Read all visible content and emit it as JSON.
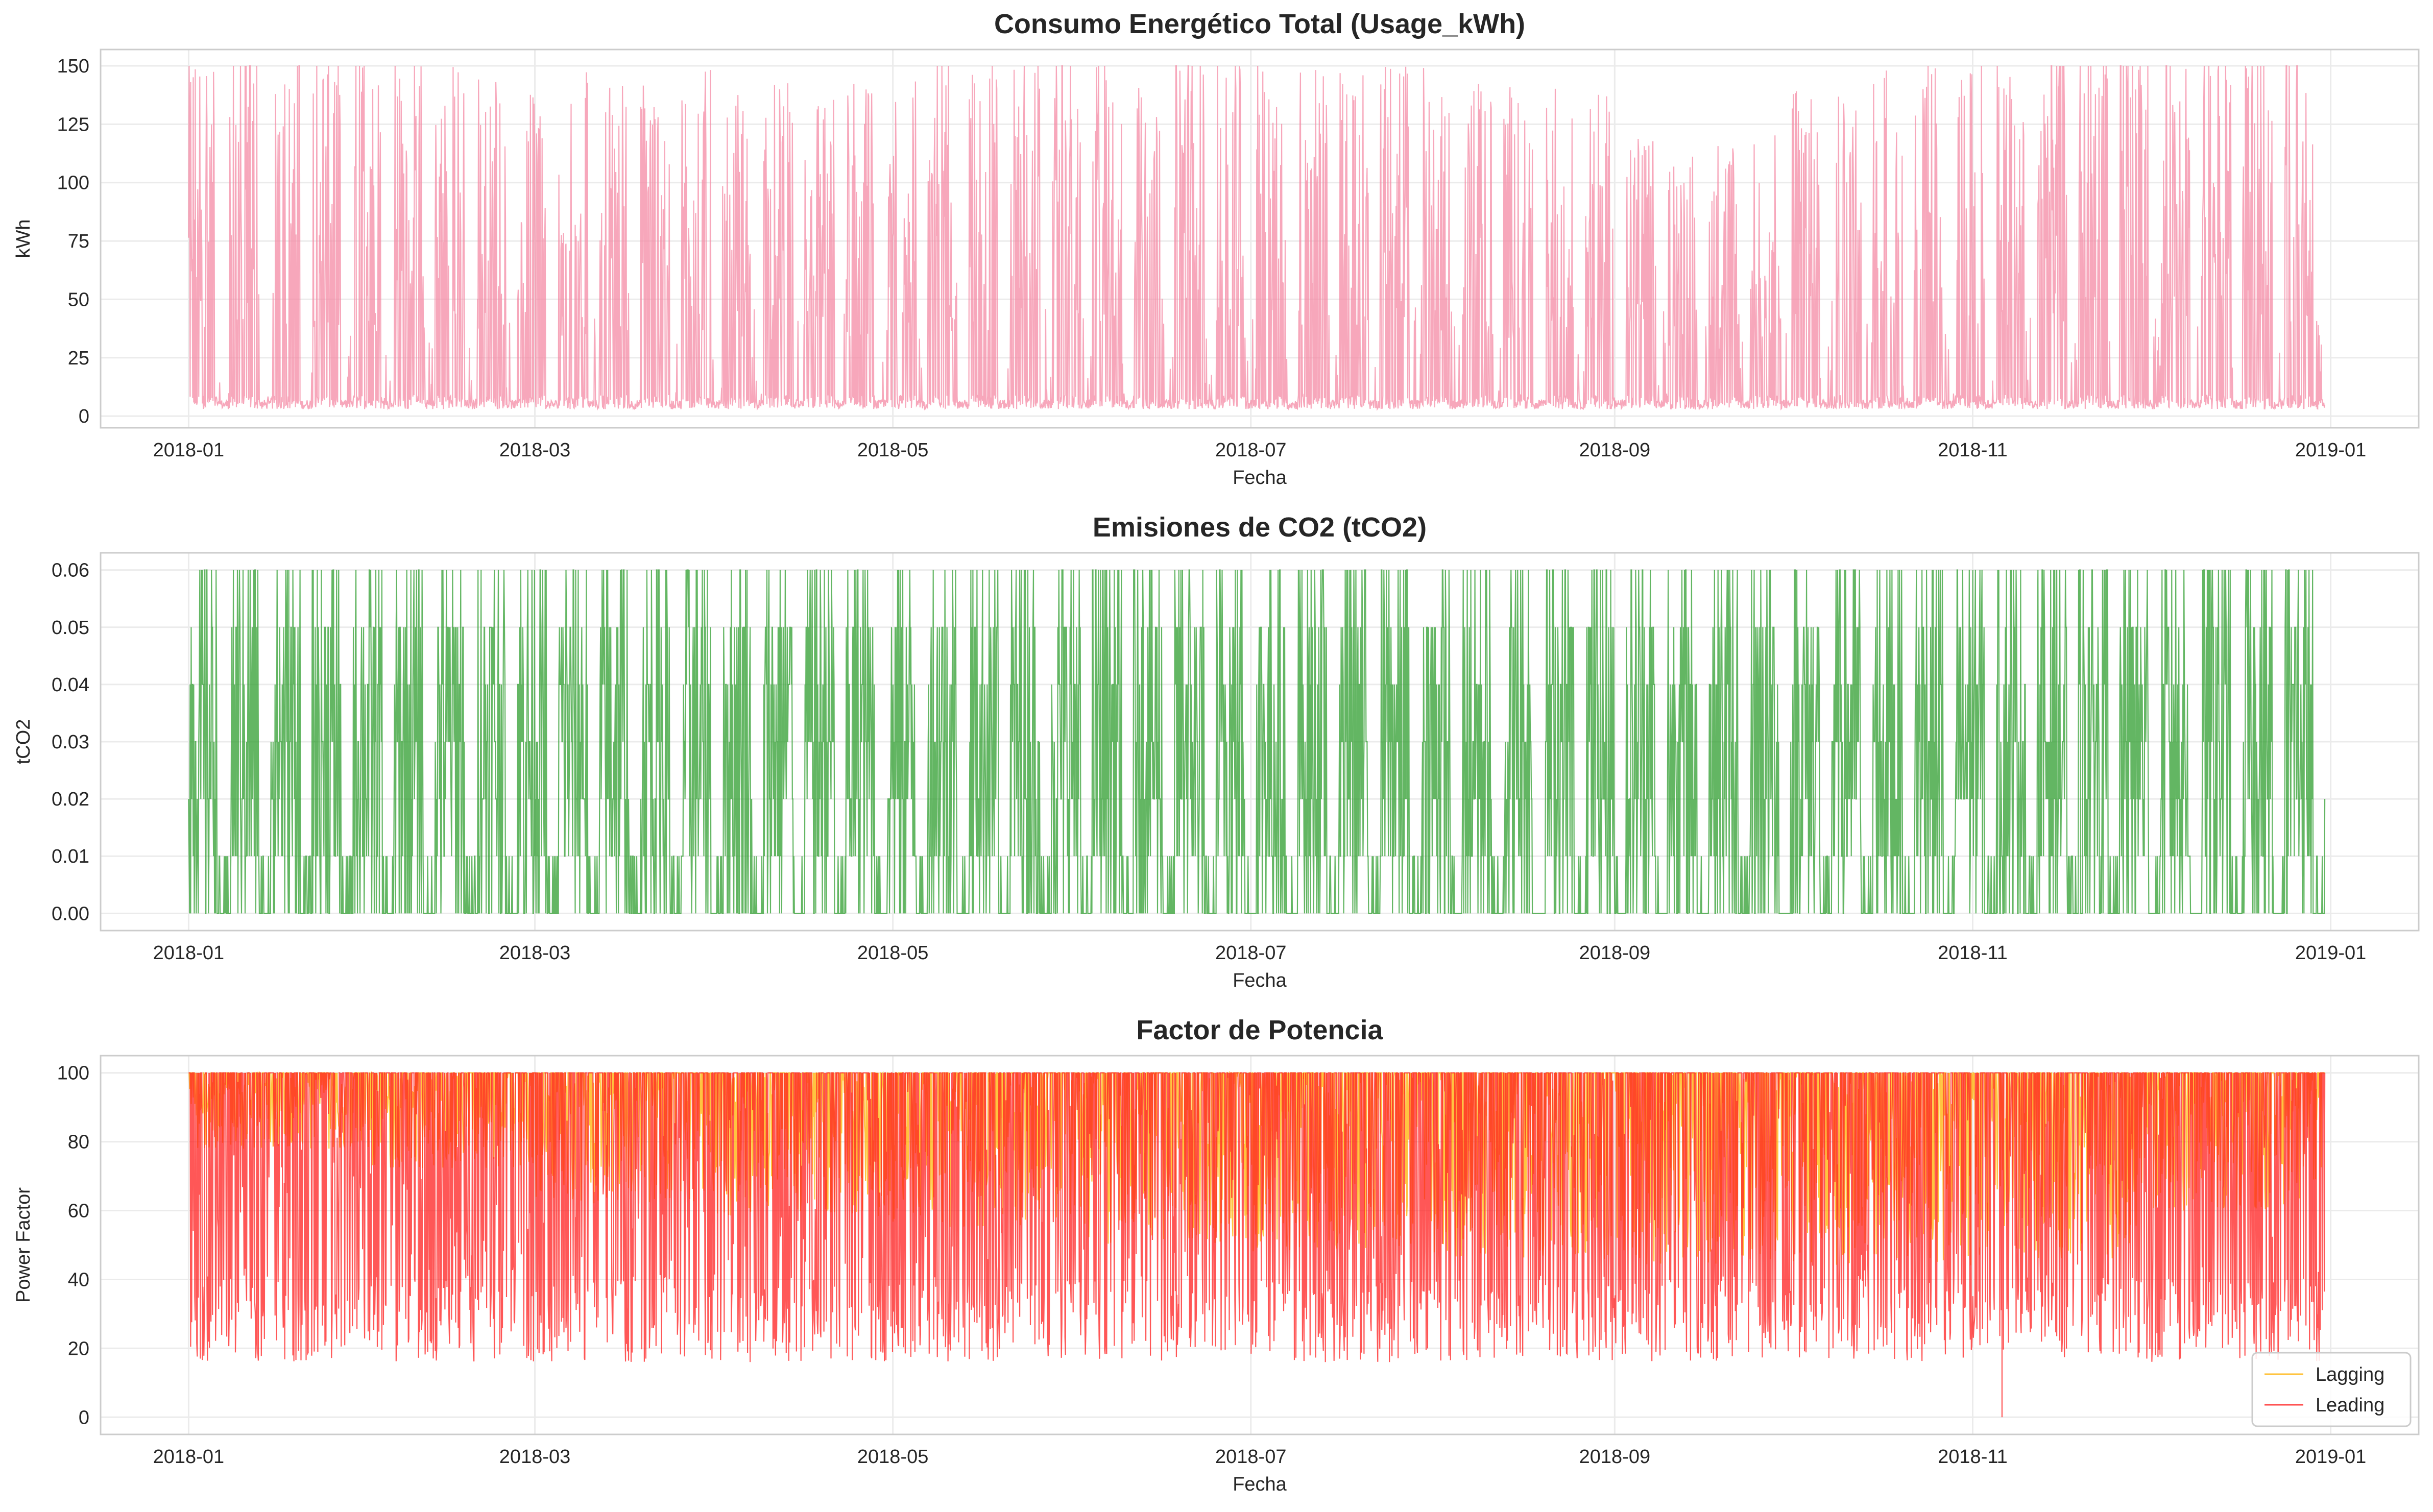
{
  "chart_data": [
    {
      "type": "line",
      "title": "Consumo Energético Total (Usage_kWh)",
      "xlabel": "Fecha",
      "ylabel": "kWh",
      "x_range": [
        "2017-12-17",
        "2019-01-16"
      ],
      "x_ticks": [
        "2018-01",
        "2018-03",
        "2018-05",
        "2018-07",
        "2018-09",
        "2018-11",
        "2019-01"
      ],
      "ylim": [
        -5,
        157
      ],
      "y_ticks": [
        0,
        25,
        50,
        75,
        100,
        125,
        150
      ],
      "grid": true,
      "series": [
        {
          "color": "#f48aa4",
          "x_start": "2018-01-01",
          "x_end": "2018-12-31",
          "min_value": 3,
          "max_value": 150,
          "period_days": 7,
          "monthly_typical_peak": [
            150,
            140,
            135,
            130,
            145,
            150,
            140,
            130,
            110,
            140,
            150,
            150
          ]
        }
      ]
    },
    {
      "type": "line",
      "title": "Emisiones de CO2 (tCO2)",
      "xlabel": "Fecha",
      "ylabel": "tCO2",
      "x_range": [
        "2017-12-17",
        "2019-01-16"
      ],
      "x_ticks": [
        "2018-01",
        "2018-03",
        "2018-05",
        "2018-07",
        "2018-09",
        "2018-11",
        "2019-01"
      ],
      "ylim": [
        -0.003,
        0.063
      ],
      "y_ticks": [
        0.0,
        0.01,
        0.02,
        0.03,
        0.04,
        0.05,
        0.06
      ],
      "y_tick_labels": [
        "0.00",
        "0.01",
        "0.02",
        "0.03",
        "0.04",
        "0.05",
        "0.06"
      ],
      "grid": true,
      "series": [
        {
          "color": "#2f9e2f",
          "x_start": "2018-01-01",
          "x_end": "2018-12-31",
          "min_value": 0,
          "max_value": 0.06,
          "step": 0.01,
          "period_days": 7
        }
      ]
    },
    {
      "type": "line",
      "title": "Factor de Potencia",
      "xlabel": "Fecha",
      "ylabel": "Power Factor",
      "x_range": [
        "2017-12-17",
        "2019-01-16"
      ],
      "x_ticks": [
        "2018-01",
        "2018-03",
        "2018-05",
        "2018-07",
        "2018-09",
        "2018-11",
        "2019-01"
      ],
      "ylim": [
        -5,
        105
      ],
      "y_ticks": [
        0,
        20,
        40,
        60,
        80,
        100
      ],
      "grid": true,
      "legend_position": "bottom-right",
      "series": [
        {
          "name": "Lagging",
          "color": "#ffb000",
          "x_start": "2018-01-01",
          "x_end": "2018-12-31",
          "max_value": 100,
          "monthly_typical_min": [
            78,
            72,
            62,
            58,
            55,
            50,
            48,
            46,
            44,
            44,
            46,
            60
          ]
        },
        {
          "name": "Leading",
          "color": "#ff1f1f",
          "x_start": "2018-01-01",
          "x_end": "2018-12-31",
          "max_value": 100,
          "typical_min": 16,
          "outlier": {
            "x": "2018-11-06",
            "value": 0
          }
        }
      ]
    }
  ]
}
